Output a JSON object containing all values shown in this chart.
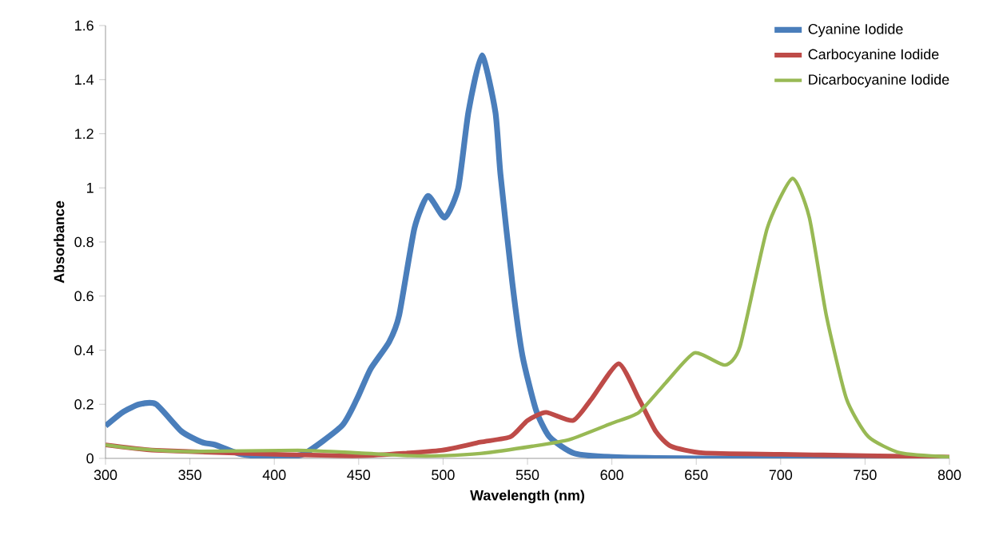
{
  "chart_data": {
    "type": "line",
    "xlabel": "Wavelength (nm)",
    "ylabel": "Absorbance",
    "xlim": [
      300,
      800
    ],
    "xticks": [
      300,
      350,
      400,
      450,
      500,
      550,
      600,
      650,
      700,
      750,
      800
    ],
    "ylim": [
      0,
      1.6
    ],
    "yticks": [
      0,
      0.2,
      0.4,
      0.6,
      0.8,
      1,
      1.2,
      1.4,
      1.6
    ],
    "grid": false,
    "legend": "top right",
    "marker": "none",
    "line_style": "solid",
    "series": [
      {
        "name": "Cyanine Iodide",
        "color": "#4a7ebb",
        "x": [
          300,
          310,
          320,
          330,
          345,
          357,
          365,
          380,
          398,
          417,
          440,
          449,
          457,
          468,
          474,
          483,
          491,
          501,
          509,
          515,
          523,
          531,
          534,
          541,
          547,
          555,
          563,
          578,
          604,
          650,
          700,
          750,
          800
        ],
        "values": [
          0.12,
          0.17,
          0.2,
          0.2,
          0.1,
          0.06,
          0.05,
          0.016,
          0.005,
          0.015,
          0.12,
          0.22,
          0.33,
          0.43,
          0.53,
          0.85,
          0.97,
          0.89,
          1.0,
          1.28,
          1.49,
          1.28,
          1.05,
          0.65,
          0.38,
          0.18,
          0.08,
          0.018,
          0.004,
          0,
          0,
          0,
          0
        ]
      },
      {
        "name": "Carbocyanine Iodide",
        "color": "#be4b48",
        "x": [
          300,
          330,
          400,
          452,
          499,
          522,
          540,
          550,
          561,
          577,
          588,
          604,
          616,
          626,
          635,
          654,
          700,
          750,
          800
        ],
        "values": [
          0.05,
          0.03,
          0.015,
          0.01,
          0.03,
          0.06,
          0.08,
          0.14,
          0.17,
          0.14,
          0.22,
          0.35,
          0.22,
          0.1,
          0.045,
          0.02,
          0.015,
          0.01,
          0.005
        ]
      },
      {
        "name": "Dicarbocyanine Iodide",
        "color": "#98b954",
        "x": [
          300,
          320,
          350,
          414,
          450,
          480,
          500,
          522,
          553,
          575,
          600,
          616,
          632,
          649,
          667,
          676,
          692,
          707,
          717,
          727,
          739,
          752,
          771,
          800
        ],
        "values": [
          0.05,
          0.035,
          0.025,
          0.03,
          0.02,
          0.01,
          0.01,
          0.018,
          0.045,
          0.07,
          0.13,
          0.17,
          0.28,
          0.39,
          0.345,
          0.415,
          0.85,
          1.035,
          0.89,
          0.53,
          0.22,
          0.08,
          0.02,
          0.005
        ]
      }
    ]
  }
}
